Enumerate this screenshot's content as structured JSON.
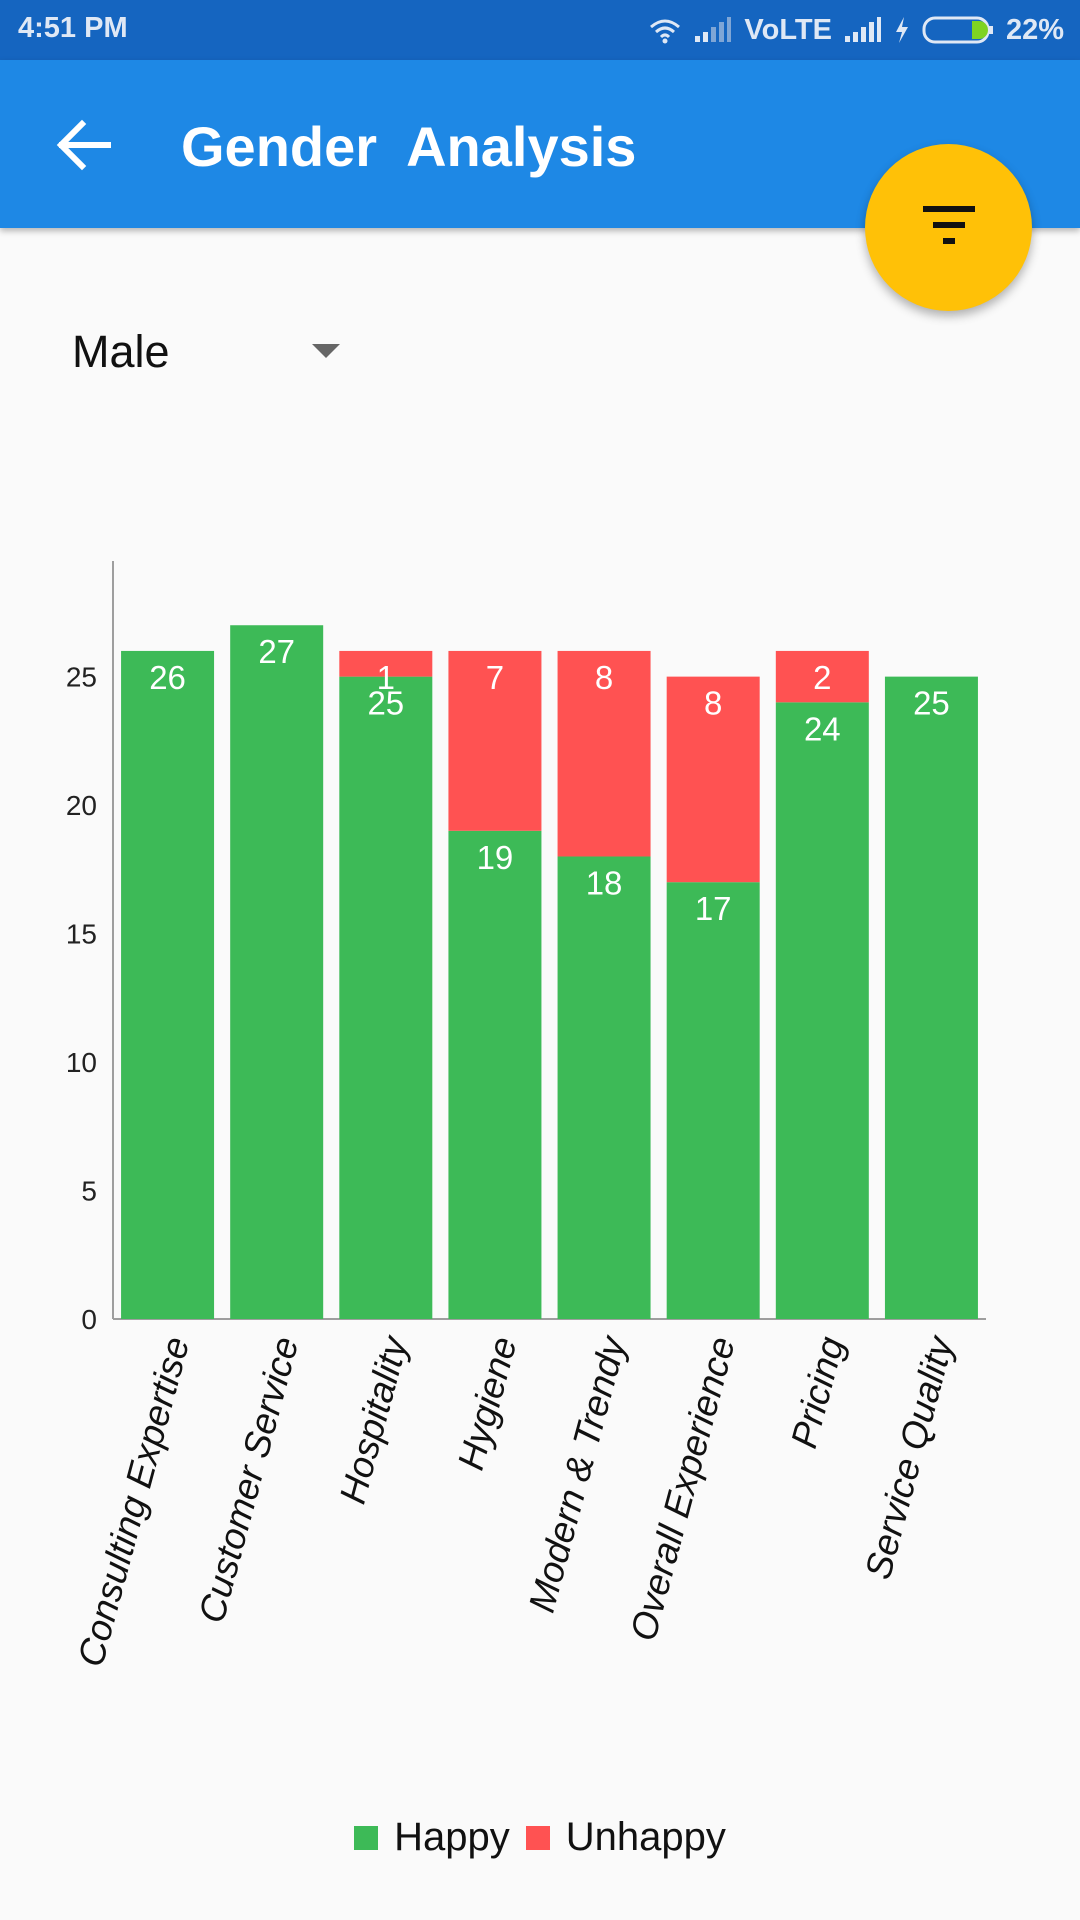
{
  "status_bar": {
    "time": "4:51 PM",
    "network": "VoLTE",
    "battery": "22%",
    "icons": [
      "wifi-icon",
      "signal-icon",
      "signal-icon",
      "charging-icon",
      "battery-icon"
    ]
  },
  "app_bar": {
    "title": "Gender  Analysis",
    "back_icon": "arrow-left-icon",
    "color": "#1e88e5"
  },
  "fab": {
    "icon": "filter-icon",
    "color": "#ffc107"
  },
  "filter": {
    "selected": "Male"
  },
  "chart_data": {
    "type": "bar",
    "stacked": true,
    "categories": [
      "Consulting Expertise",
      "Customer Service",
      "Hospitality",
      "Hygiene",
      "Modern & Trendy",
      "Overall Experience",
      "Pricing",
      "Service Quality"
    ],
    "series": [
      {
        "name": "Happy",
        "color": "#3dba57",
        "values": [
          26,
          27,
          25,
          19,
          18,
          17,
          24,
          25
        ]
      },
      {
        "name": "Unhappy",
        "color": "#ff5252",
        "values": [
          null,
          null,
          1,
          7,
          8,
          8,
          2,
          null
        ]
      }
    ],
    "y_ticks": [
      "0",
      "5",
      "10",
      "15",
      "20",
      "25"
    ],
    "ylim": [
      0,
      29.5
    ],
    "grid": false,
    "legend_position": "bottom-center"
  }
}
